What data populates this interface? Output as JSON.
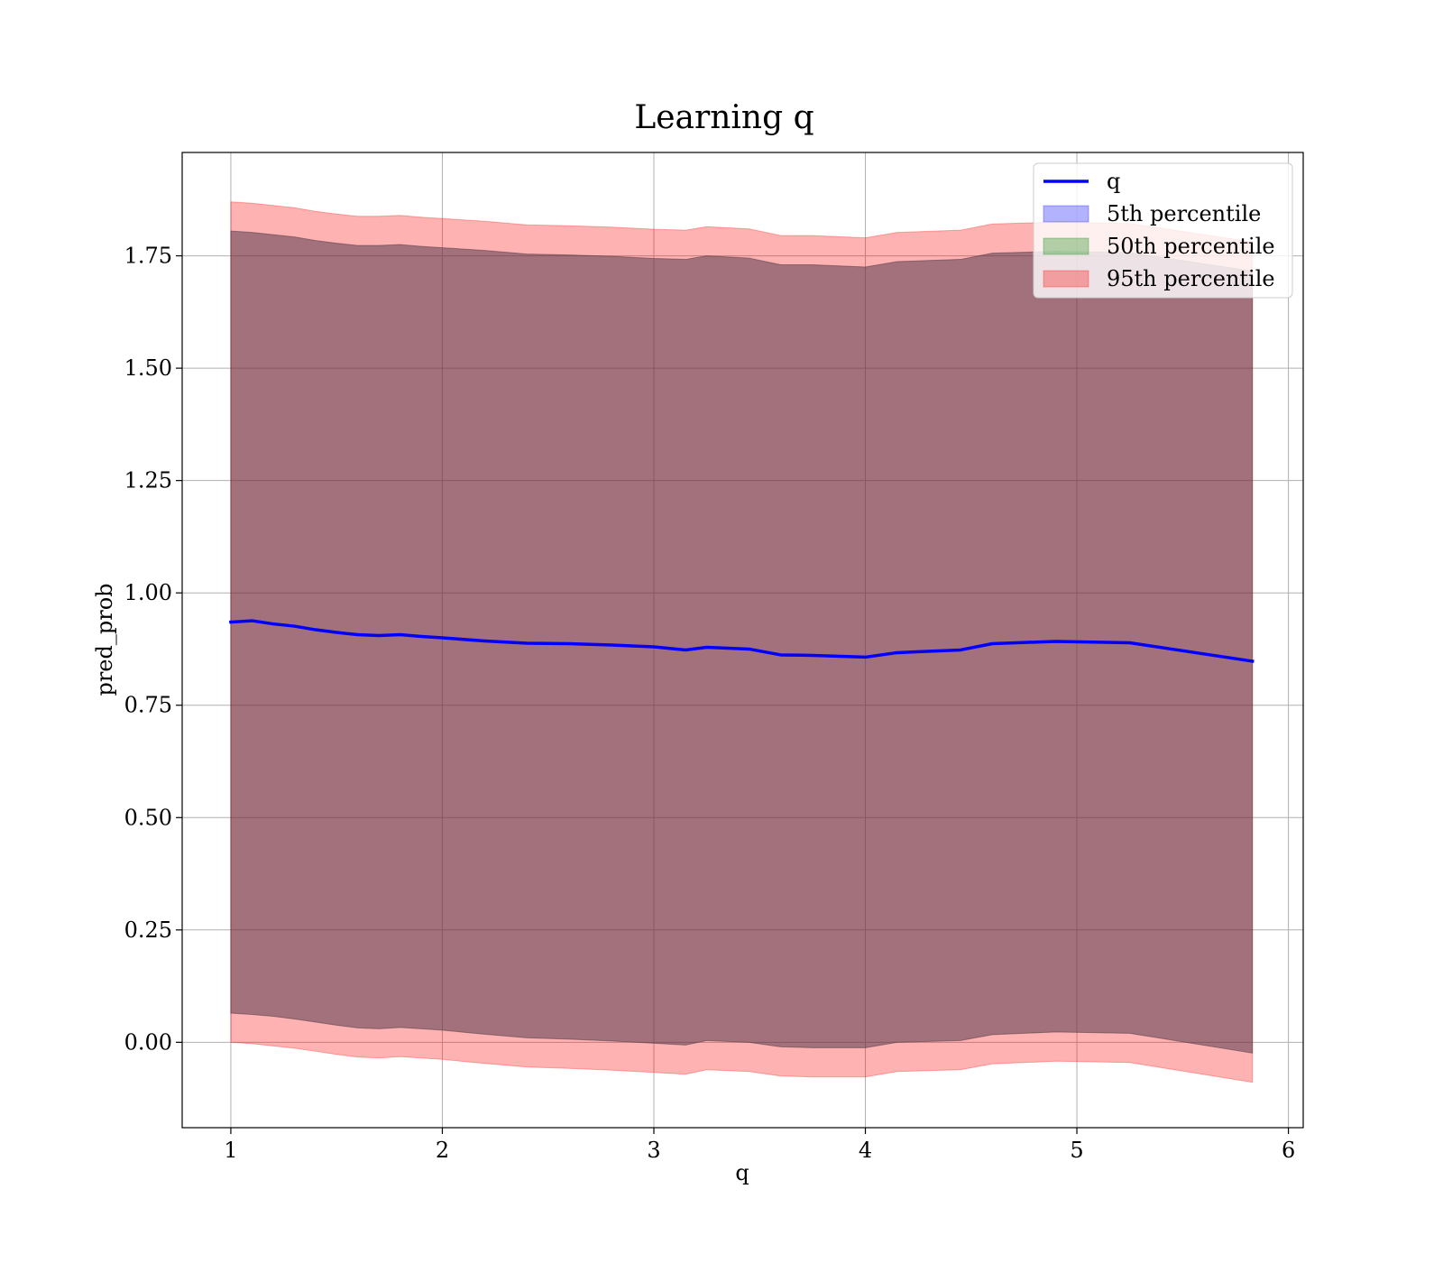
{
  "chart_data": {
    "type": "line",
    "title": "Learning q",
    "xlabel": "q",
    "ylabel": "pred_prob",
    "xlim": [
      0.77,
      6.07
    ],
    "ylim": [
      -0.19,
      1.98
    ],
    "xticks": [
      1,
      2,
      3,
      4,
      5,
      6
    ],
    "xtick_labels": [
      "1",
      "2",
      "3",
      "4",
      "5",
      "6"
    ],
    "yticks": [
      0.0,
      0.25,
      0.5,
      0.75,
      1.0,
      1.25,
      1.5,
      1.75
    ],
    "ytick_labels": [
      "0.00",
      "0.25",
      "0.50",
      "0.75",
      "1.00",
      "1.25",
      "1.50",
      "1.75"
    ],
    "grid": true,
    "legend_position": "top-right",
    "x": [
      1.0,
      1.1,
      1.2,
      1.3,
      1.4,
      1.5,
      1.6,
      1.7,
      1.8,
      1.9,
      2.0,
      2.2,
      2.4,
      2.6,
      2.8,
      3.0,
      3.15,
      3.25,
      3.45,
      3.6,
      3.75,
      4.0,
      4.15,
      4.45,
      4.6,
      4.9,
      5.25,
      5.83
    ],
    "line": {
      "name": "q",
      "color": "#0000ff",
      "values": [
        0.935,
        0.938,
        0.931,
        0.926,
        0.918,
        0.912,
        0.907,
        0.905,
        0.907,
        0.903,
        0.9,
        0.893,
        0.888,
        0.887,
        0.884,
        0.88,
        0.873,
        0.879,
        0.875,
        0.862,
        0.861,
        0.857,
        0.867,
        0.873,
        0.887,
        0.892,
        0.889,
        0.848
      ]
    },
    "bands": [
      {
        "name": "5th percentile",
        "color": "#0000ff",
        "lower": [
          0.065,
          0.062,
          0.058,
          0.052,
          0.045,
          0.038,
          0.032,
          0.03,
          0.033,
          0.03,
          0.027,
          0.018,
          0.01,
          0.007,
          0.003,
          -0.002,
          -0.006,
          0.004,
          0.0,
          -0.01,
          -0.012,
          -0.012,
          0.0,
          0.004,
          0.017,
          0.023,
          0.02,
          -0.024
        ],
        "upper": [
          1.805,
          1.802,
          1.797,
          1.792,
          1.784,
          1.778,
          1.773,
          1.773,
          1.775,
          1.771,
          1.768,
          1.762,
          1.754,
          1.752,
          1.749,
          1.744,
          1.742,
          1.75,
          1.745,
          1.73,
          1.73,
          1.725,
          1.737,
          1.742,
          1.756,
          1.76,
          1.757,
          1.716
        ]
      },
      {
        "name": "50th percentile",
        "color": "#008000",
        "lower": [
          0.065,
          0.062,
          0.058,
          0.052,
          0.045,
          0.038,
          0.032,
          0.03,
          0.033,
          0.03,
          0.027,
          0.018,
          0.01,
          0.007,
          0.003,
          -0.002,
          -0.006,
          0.004,
          0.0,
          -0.01,
          -0.012,
          -0.012,
          0.0,
          0.004,
          0.017,
          0.023,
          0.02,
          -0.024
        ],
        "upper": [
          1.805,
          1.802,
          1.797,
          1.792,
          1.784,
          1.778,
          1.773,
          1.773,
          1.775,
          1.771,
          1.768,
          1.762,
          1.754,
          1.752,
          1.749,
          1.744,
          1.742,
          1.75,
          1.745,
          1.73,
          1.73,
          1.725,
          1.737,
          1.742,
          1.756,
          1.76,
          1.757,
          1.716
        ]
      },
      {
        "name": "95th percentile",
        "color": "#ff0000",
        "lower": [
          0.0,
          -0.003,
          -0.008,
          -0.013,
          -0.02,
          -0.027,
          -0.033,
          -0.035,
          -0.032,
          -0.035,
          -0.038,
          -0.047,
          -0.055,
          -0.058,
          -0.062,
          -0.067,
          -0.071,
          -0.061,
          -0.065,
          -0.075,
          -0.077,
          -0.077,
          -0.065,
          -0.061,
          -0.048,
          -0.042,
          -0.045,
          -0.089
        ],
        "upper": [
          1.87,
          1.867,
          1.862,
          1.857,
          1.849,
          1.843,
          1.838,
          1.838,
          1.84,
          1.836,
          1.833,
          1.827,
          1.819,
          1.817,
          1.814,
          1.809,
          1.807,
          1.815,
          1.81,
          1.795,
          1.795,
          1.79,
          1.802,
          1.807,
          1.821,
          1.825,
          1.822,
          1.781
        ]
      }
    ],
    "legend": [
      {
        "label": "q",
        "kind": "line",
        "color": "#0000ff"
      },
      {
        "label": "5th percentile",
        "kind": "patch",
        "color": "#0000ff"
      },
      {
        "label": "50th percentile",
        "kind": "patch",
        "color": "#008000"
      },
      {
        "label": "95th percentile",
        "kind": "patch",
        "color": "#ff0000"
      }
    ]
  }
}
